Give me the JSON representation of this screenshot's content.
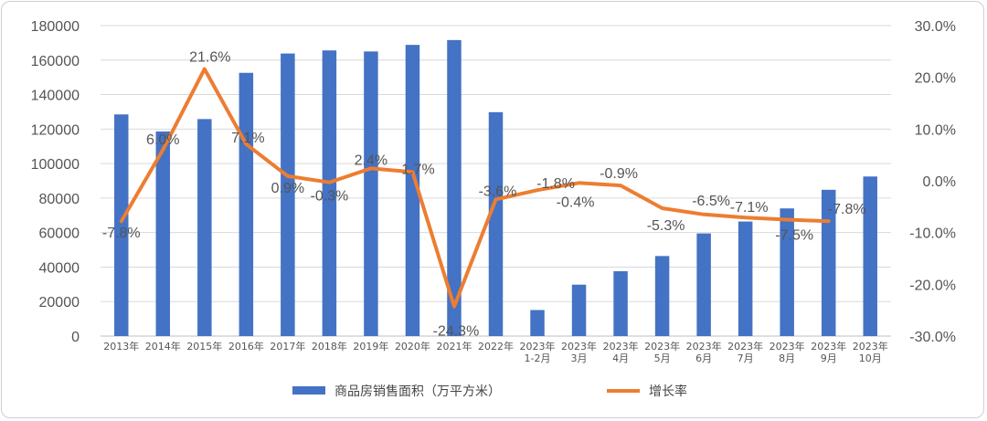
{
  "chart_data": {
    "type": "bar",
    "categories": [
      [
        "2013年"
      ],
      [
        "2014年"
      ],
      [
        "2015年"
      ],
      [
        "2016年"
      ],
      [
        "2017年"
      ],
      [
        "2018年"
      ],
      [
        "2019年"
      ],
      [
        "2020年"
      ],
      [
        "2021年"
      ],
      [
        "2022年"
      ],
      [
        "2023年",
        "1-2月"
      ],
      [
        "2023年",
        "3月"
      ],
      [
        "2023年",
        "4月"
      ],
      [
        "2023年",
        "5月"
      ],
      [
        "2023年",
        "6月"
      ],
      [
        "2023年",
        "7月"
      ],
      [
        "2023年",
        "8月"
      ],
      [
        "2023年",
        "9月"
      ],
      [
        "2023年",
        "10月"
      ]
    ],
    "series": [
      {
        "name": "商品房销售面积（万平方米）",
        "type": "bar",
        "axis": "left",
        "color": "#4472C4",
        "values": [
          128500,
          118600,
          125800,
          152600,
          163800,
          165600,
          165000,
          168800,
          171600,
          129800,
          15100,
          29800,
          37600,
          46400,
          59500,
          66400,
          74000,
          84800,
          92500
        ]
      },
      {
        "name": "增长率",
        "type": "line",
        "axis": "right",
        "color": "#ED7D31",
        "values": [
          -7.8,
          6.0,
          21.6,
          7.1,
          0.9,
          -0.3,
          2.4,
          1.7,
          -24.3,
          -3.6,
          -1.8,
          -0.4,
          -0.9,
          -5.3,
          -6.5,
          -7.1,
          -7.5,
          -7.8,
          null
        ],
        "labels": [
          "-7.8%",
          "6.0%",
          "21.6%",
          "7.1%",
          "0.9%",
          "-0.3%",
          "2.4%",
          "1.7%",
          "-24.3%",
          "-3.6%",
          "-1.8%",
          "-0.4%",
          "-0.9%",
          "-5.3%",
          "-6.5%",
          "-7.1%",
          "-7.5%",
          "-7.8%",
          null
        ]
      }
    ],
    "y_left": {
      "ylim": [
        0,
        180000
      ],
      "ticks": [
        0,
        20000,
        40000,
        60000,
        80000,
        100000,
        120000,
        140000,
        160000,
        180000
      ],
      "tick_labels": [
        "0",
        "20000",
        "40000",
        "60000",
        "80000",
        "100000",
        "120000",
        "140000",
        "160000",
        "180000"
      ]
    },
    "y_right": {
      "ylim": [
        -30,
        30
      ],
      "ticks": [
        -30,
        -20,
        -10,
        0,
        10,
        20,
        30
      ],
      "tick_labels": [
        "-30.0%",
        "-20.0%",
        "-10.0%",
        "0.0%",
        "10.0%",
        "20.0%",
        "30.0%"
      ]
    },
    "grid": true,
    "legend": "bottom-center",
    "legend_entries": [
      "商品房销售面积（万平方米）",
      "增长率"
    ]
  }
}
